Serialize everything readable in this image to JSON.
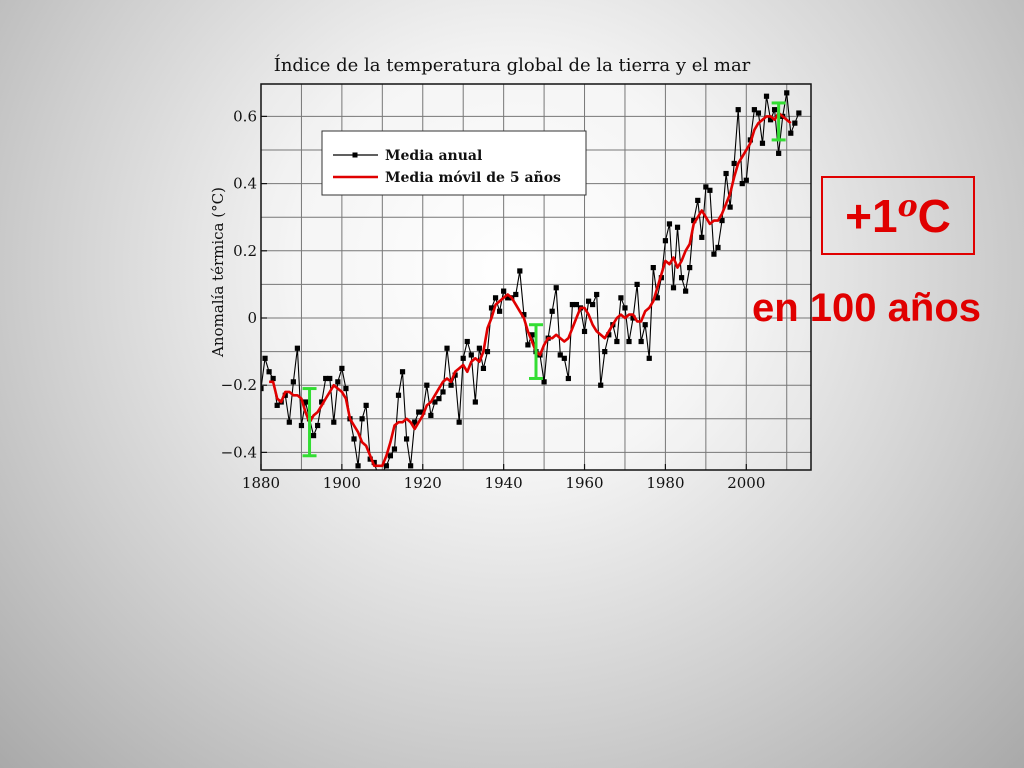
{
  "chart_data": {
    "type": "line",
    "title": "Índice de la temperatura global de la tierra y el mar",
    "xlabel": "",
    "ylabel": "Anomalía térmica (°C)",
    "xlim": [
      1880,
      2016
    ],
    "ylim": [
      -0.45,
      0.7
    ],
    "x_ticks": [
      1880,
      1900,
      1920,
      1940,
      1960,
      1980,
      2000
    ],
    "x_tick_labels": [
      "1880",
      "1900",
      "1920",
      "1940",
      "1960",
      "1980",
      "2000"
    ],
    "y_ticks": [
      0.6,
      0.4,
      0.2,
      0,
      -0.2,
      -0.4
    ],
    "y_tick_labels": [
      "0.6",
      "0.4",
      "0.2",
      "0",
      "−0.2",
      "−0.4"
    ],
    "grid": true,
    "legend_position": "top-left",
    "series": [
      {
        "name": "Media anual",
        "color": "#000000",
        "marker": "square",
        "x": [
          1880,
          1881,
          1882,
          1883,
          1884,
          1885,
          1886,
          1887,
          1888,
          1889,
          1890,
          1891,
          1892,
          1893,
          1894,
          1895,
          1896,
          1897,
          1898,
          1899,
          1900,
          1901,
          1902,
          1903,
          1904,
          1905,
          1906,
          1907,
          1908,
          1909,
          1910,
          1911,
          1912,
          1913,
          1914,
          1915,
          1916,
          1917,
          1918,
          1919,
          1920,
          1921,
          1922,
          1923,
          1924,
          1925,
          1926,
          1927,
          1928,
          1929,
          1930,
          1931,
          1932,
          1933,
          1934,
          1935,
          1936,
          1937,
          1938,
          1939,
          1940,
          1941,
          1942,
          1943,
          1944,
          1945,
          1946,
          1947,
          1948,
          1949,
          1950,
          1951,
          1952,
          1953,
          1954,
          1955,
          1956,
          1957,
          1958,
          1959,
          1960,
          1961,
          1962,
          1963,
          1964,
          1965,
          1966,
          1967,
          1968,
          1969,
          1970,
          1971,
          1972,
          1973,
          1974,
          1975,
          1976,
          1977,
          1978,
          1979,
          1980,
          1981,
          1982,
          1983,
          1984,
          1985,
          1986,
          1987,
          1988,
          1989,
          1990,
          1991,
          1992,
          1993,
          1994,
          1995,
          1996,
          1997,
          1998,
          1999,
          2000,
          2001,
          2002,
          2003,
          2004,
          2005,
          2006,
          2007,
          2008,
          2009,
          2010,
          2011,
          2012,
          2013
        ],
        "values": [
          -0.21,
          -0.12,
          -0.16,
          -0.18,
          -0.26,
          -0.25,
          -0.23,
          -0.31,
          -0.19,
          -0.09,
          -0.32,
          -0.25,
          -0.3,
          -0.35,
          -0.32,
          -0.25,
          -0.18,
          -0.18,
          -0.31,
          -0.19,
          -0.15,
          -0.21,
          -0.3,
          -0.36,
          -0.44,
          -0.3,
          -0.26,
          -0.42,
          -0.43,
          -0.47,
          -0.46,
          -0.44,
          -0.41,
          -0.39,
          -0.23,
          -0.16,
          -0.36,
          -0.44,
          -0.31,
          -0.28,
          -0.28,
          -0.2,
          -0.29,
          -0.25,
          -0.24,
          -0.22,
          -0.09,
          -0.2,
          -0.17,
          -0.31,
          -0.12,
          -0.07,
          -0.11,
          -0.25,
          -0.09,
          -0.15,
          -0.1,
          0.03,
          0.06,
          0.02,
          0.08,
          0.06,
          0.06,
          0.07,
          0.14,
          0.01,
          -0.08,
          -0.05,
          -0.1,
          -0.11,
          -0.19,
          -0.06,
          0.02,
          0.09,
          -0.11,
          -0.12,
          -0.18,
          0.04,
          0.04,
          0.03,
          -0.04,
          0.05,
          0.04,
          0.07,
          -0.2,
          -0.1,
          -0.05,
          -0.02,
          -0.07,
          0.06,
          0.03,
          -0.07,
          0.0,
          0.1,
          -0.07,
          -0.02,
          -0.12,
          0.15,
          0.06,
          0.12,
          0.23,
          0.28,
          0.09,
          0.27,
          0.12,
          0.08,
          0.15,
          0.29,
          0.35,
          0.24,
          0.39,
          0.38,
          0.19,
          0.21,
          0.29,
          0.43,
          0.33,
          0.46,
          0.62,
          0.4,
          0.41,
          0.53,
          0.62,
          0.61,
          0.52,
          0.66,
          0.59,
          0.62,
          0.49,
          0.6,
          0.67,
          0.55,
          0.58,
          0.61
        ]
      },
      {
        "name": "Media móvil de 5 años",
        "color": "#e00000",
        "marker": "none",
        "x": [
          1882,
          1883,
          1884,
          1885,
          1886,
          1887,
          1888,
          1889,
          1890,
          1891,
          1892,
          1893,
          1894,
          1895,
          1896,
          1897,
          1898,
          1899,
          1900,
          1901,
          1902,
          1903,
          1904,
          1905,
          1906,
          1907,
          1908,
          1909,
          1910,
          1911,
          1912,
          1913,
          1914,
          1915,
          1916,
          1917,
          1918,
          1919,
          1920,
          1921,
          1922,
          1923,
          1924,
          1925,
          1926,
          1927,
          1928,
          1929,
          1930,
          1931,
          1932,
          1933,
          1934,
          1935,
          1936,
          1937,
          1938,
          1939,
          1940,
          1941,
          1942,
          1943,
          1944,
          1945,
          1946,
          1947,
          1948,
          1949,
          1950,
          1951,
          1952,
          1953,
          1954,
          1955,
          1956,
          1957,
          1958,
          1959,
          1960,
          1961,
          1962,
          1963,
          1964,
          1965,
          1966,
          1967,
          1968,
          1969,
          1970,
          1971,
          1972,
          1973,
          1974,
          1975,
          1976,
          1977,
          1978,
          1979,
          1980,
          1981,
          1982,
          1983,
          1984,
          1985,
          1986,
          1987,
          1988,
          1989,
          1990,
          1991,
          1992,
          1993,
          1994,
          1995,
          1996,
          1997,
          1998,
          1999,
          2000,
          2001,
          2002,
          2003,
          2004,
          2005,
          2006,
          2007,
          2008,
          2009,
          2010,
          2011
        ],
        "values": [
          -0.19,
          -0.19,
          -0.24,
          -0.25,
          -0.22,
          -0.22,
          -0.23,
          -0.23,
          -0.24,
          -0.28,
          -0.31,
          -0.29,
          -0.28,
          -0.26,
          -0.24,
          -0.22,
          -0.2,
          -0.21,
          -0.22,
          -0.24,
          -0.3,
          -0.32,
          -0.34,
          -0.37,
          -0.38,
          -0.41,
          -0.44,
          -0.44,
          -0.44,
          -0.41,
          -0.37,
          -0.32,
          -0.31,
          -0.31,
          -0.3,
          -0.31,
          -0.33,
          -0.31,
          -0.29,
          -0.26,
          -0.25,
          -0.23,
          -0.21,
          -0.19,
          -0.18,
          -0.19,
          -0.16,
          -0.15,
          -0.14,
          -0.16,
          -0.13,
          -0.12,
          -0.13,
          -0.1,
          -0.03,
          0.0,
          0.04,
          0.05,
          0.06,
          0.07,
          0.06,
          0.04,
          0.02,
          0.0,
          -0.04,
          -0.07,
          -0.1,
          -0.11,
          -0.08,
          -0.06,
          -0.06,
          -0.05,
          -0.06,
          -0.07,
          -0.06,
          -0.03,
          0.0,
          0.03,
          0.03,
          0.01,
          -0.02,
          -0.04,
          -0.05,
          -0.06,
          -0.04,
          -0.02,
          0.0,
          0.01,
          0.0,
          0.01,
          0.01,
          -0.01,
          -0.01,
          0.02,
          0.03,
          0.05,
          0.09,
          0.13,
          0.17,
          0.16,
          0.18,
          0.15,
          0.17,
          0.2,
          0.22,
          0.28,
          0.3,
          0.32,
          0.3,
          0.28,
          0.29,
          0.29,
          0.31,
          0.34,
          0.37,
          0.42,
          0.46,
          0.48,
          0.5,
          0.52,
          0.56,
          0.58,
          0.59,
          0.6,
          0.6,
          0.59,
          0.61,
          0.6,
          0.59,
          0.58
        ]
      }
    ],
    "error_bars": [
      {
        "x": 1892,
        "low": -0.41,
        "high": -0.21,
        "color": "#33dd33"
      },
      {
        "x": 1948,
        "low": -0.18,
        "high": -0.02,
        "color": "#33dd33"
      },
      {
        "x": 2008,
        "low": 0.53,
        "high": 0.64,
        "color": "#33dd33"
      }
    ]
  },
  "callout": {
    "main": "+1",
    "superscript": "o",
    "unit": "C",
    "sub": "en 100 años",
    "color": "#e00000"
  }
}
